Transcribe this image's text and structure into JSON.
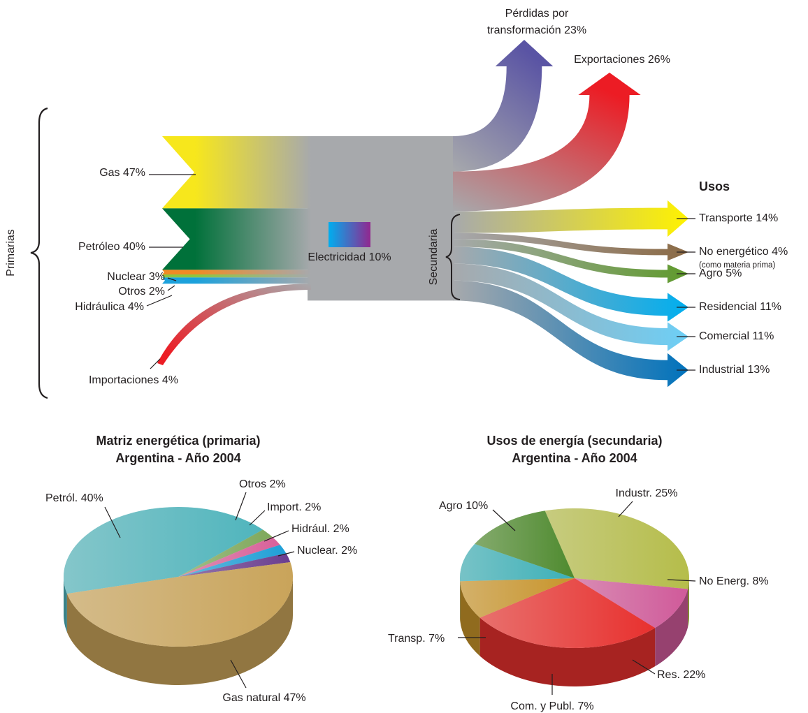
{
  "chart_data": [
    {
      "type": "sankey",
      "group_labels": {
        "primary": "Primarias",
        "secondary": "Secundaria",
        "uses": "Usos"
      },
      "center": {
        "label": "Electricidad 10%",
        "value": 10,
        "color": "#a7a9ac",
        "gradient_colors": [
          "#00aeef",
          "#92278f"
        ]
      },
      "sources": [
        {
          "label": "Gas 47%",
          "value": 47,
          "color": "#f7e71c"
        },
        {
          "label": "Petróleo 40%",
          "value": 40,
          "color": "#00713a"
        },
        {
          "label": "Nuclear 3%",
          "value": 3,
          "color": "#f08a24"
        },
        {
          "label": "Otros 2%",
          "value": 2,
          "color": "#8dc63f"
        },
        {
          "label": "Hidráulica 4%",
          "value": 4,
          "color": "#1ba1dc"
        },
        {
          "label": "Importaciones 4%",
          "value": 4,
          "color": "#ec1c24"
        }
      ],
      "losses": {
        "label_lines": [
          "Pérdidas por",
          "transformación 23%"
        ],
        "value": 23,
        "color": "#5a54a4"
      },
      "exports": {
        "label": "Exportaciones 26%",
        "value": 26,
        "color": "#ec1c24"
      },
      "uses": [
        {
          "label": "Transporte 14%",
          "value": 14,
          "color": "#fff200"
        },
        {
          "label": "No energético 4%",
          "note": "(como materia prima)",
          "value": 4,
          "color": "#8b6a45"
        },
        {
          "label": "Agro 5%",
          "value": 5,
          "color": "#5f9a2c"
        },
        {
          "label": "Residencial 11%",
          "value": 11,
          "color": "#00aeef"
        },
        {
          "label": "Comercial 11%",
          "value": 11,
          "color": "#6dcff6"
        },
        {
          "label": "Industrial 13%",
          "value": 13,
          "color": "#0072bc"
        }
      ]
    },
    {
      "type": "pie",
      "title": "Matriz energética (primaria)",
      "subtitle": "Argentina - Año 2004",
      "categories": [
        "Petról. 40%",
        "Otros 2%",
        "Import. 2%",
        "Hidrául. 2%",
        "Nuclear. 2%",
        "Gas natural 47%"
      ],
      "values": [
        40,
        2,
        2,
        2,
        2,
        47
      ],
      "colors": [
        "#4fb5bd",
        "#7ea85a",
        "#d9609a",
        "#1fa0d8",
        "#6a3d8f",
        "#c9a45a"
      ]
    },
    {
      "type": "pie",
      "title": "Usos de energía (secundaria)",
      "subtitle": "Argentina - Año 2004",
      "categories": [
        "Industr. 25%",
        "No Energ. 8%",
        "Res. 22%",
        "Com. y Publ. 7%",
        "Transp. 7%",
        "Agro 10%"
      ],
      "values": [
        25,
        8,
        22,
        7,
        7,
        10
      ],
      "colors": [
        "#b5bd4a",
        "#d05a9a",
        "#e8302e",
        "#c8942a",
        "#3bb0b8",
        "#4e8a2e"
      ]
    }
  ]
}
